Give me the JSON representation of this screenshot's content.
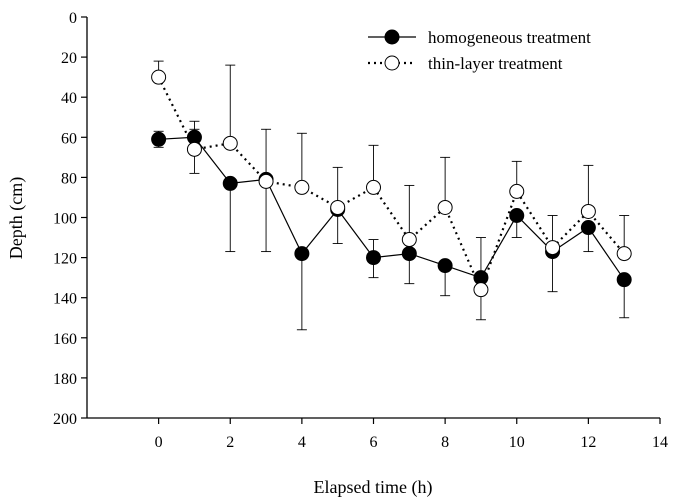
{
  "chart_data": {
    "type": "line",
    "title": "",
    "xlabel": "Elapsed time (h)",
    "ylabel": "Depth (cm)",
    "xlim": [
      -2,
      14
    ],
    "ylim": [
      0,
      200
    ],
    "y_inverted": true,
    "xticks": [
      "0",
      "2",
      "4",
      "6",
      "8",
      "10",
      "12",
      "14"
    ],
    "yticks": [
      "0",
      "20",
      "40",
      "60",
      "80",
      "100",
      "120",
      "140",
      "160",
      "180",
      "200"
    ],
    "grid": false,
    "legend_position": "top-right",
    "x": [
      0,
      1,
      2,
      3,
      4,
      5,
      6,
      7,
      8,
      9,
      10,
      11,
      12,
      13
    ],
    "series": [
      {
        "name": "homogeneous treatment",
        "marker": "filled-circle",
        "line": "solid",
        "values": [
          61,
          60,
          83,
          81,
          118,
          96,
          120,
          118,
          124,
          130,
          99,
          117,
          105,
          131
        ],
        "err_low": [
          65,
          64,
          117,
          117,
          156,
          113,
          130,
          133,
          139,
          151,
          110,
          137,
          117,
          150
        ],
        "err_high": [
          57,
          56,
          83,
          81,
          118,
          96,
          111,
          118,
          124,
          110,
          99,
          117,
          105,
          131
        ]
      },
      {
        "name": "thin-layer treatment",
        "marker": "open-circle",
        "line": "dotted",
        "values": [
          30,
          66,
          63,
          82,
          85,
          95,
          85,
          111,
          95,
          136,
          87,
          115,
          97,
          118
        ],
        "err_low": [
          30,
          78,
          63,
          82,
          85,
          95,
          85,
          111,
          95,
          136,
          87,
          115,
          97,
          118
        ],
        "err_high": [
          22,
          52,
          24,
          56,
          58,
          75,
          64,
          84,
          70,
          136,
          72,
          99,
          74,
          99
        ]
      }
    ],
    "colors": {
      "line": "#000000",
      "marker_fill": "#000000",
      "marker_open": "#ffffff"
    }
  }
}
